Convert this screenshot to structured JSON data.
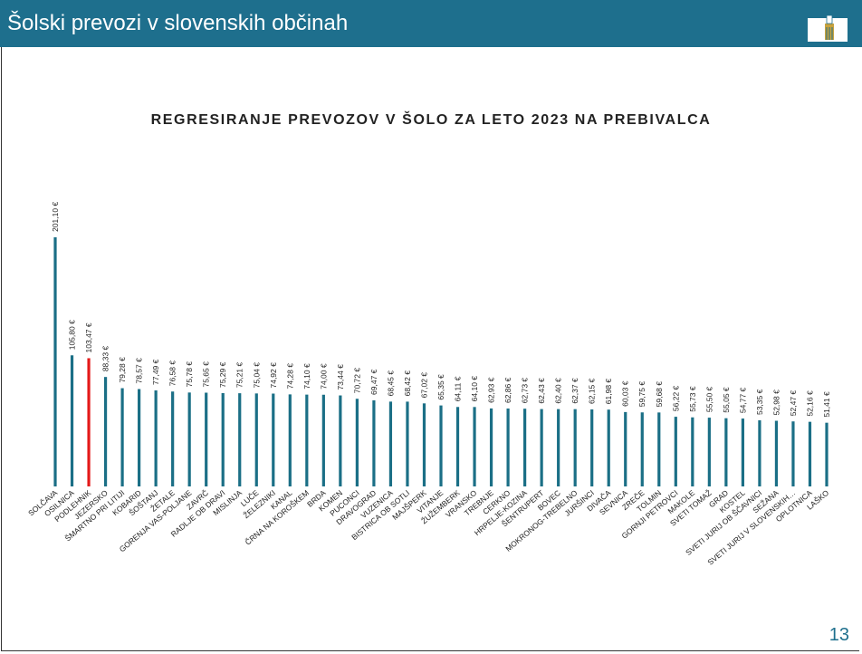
{
  "slide_title": "Šolski prevozi v slovenskih občinah",
  "page_number": "13",
  "chart_data": {
    "type": "bar",
    "title": "REGRESIRANJE PREVOZOV V ŠOLO ZA LETO 2023 NA PREBIVALCA",
    "categories": [
      "SOLČAVA",
      "OSILNICA",
      "PODLEHNIK",
      "JEZERSKO",
      "ŠMARTNO PRI LITIJI",
      "KOBARID",
      "ŠOŠTANJ",
      "ŽETALE",
      "GORENJA VAS-POLJANE",
      "ZAVRČ",
      "RADLJE OB DRAVI",
      "MISLINJA",
      "LUČE",
      "ŽELEZNIKI",
      "KANAL",
      "ČRNA NA KOROŠKEM",
      "BRDA",
      "KOMEN",
      "PUCONCI",
      "DRAVOGRAD",
      "VUZENICA",
      "BISTRICA OB SOTLI",
      "MAJŠPERK",
      "VITANJE",
      "ŽUŽEMBERK",
      "VRANSKO",
      "TREBNJE",
      "CERKNO",
      "HRPELJE-KOZINA",
      "ŠENTRUPERT",
      "BOVEC",
      "MOKRONOG-TREBELNO",
      "JURŠINCI",
      "DIVAČA",
      "SEVNICA",
      "ZREČE",
      "TOLMIN",
      "GORNJI PETROVCI",
      "MAKOLE",
      "SVETI TOMAŽ",
      "GRAD",
      "KOSTEL",
      "SVETI JURIJ OB ŠČAVNICI",
      "SEŽANA",
      "SVETI JURIJ V SLOVENSKIH…",
      "OPLOTNICA",
      "LAŠKO"
    ],
    "values": [
      201.1,
      105.8,
      103.47,
      88.33,
      79.28,
      78.57,
      77.49,
      76.58,
      75.78,
      75.65,
      75.29,
      75.21,
      75.04,
      74.92,
      74.28,
      74.1,
      74.0,
      73.44,
      70.72,
      69.47,
      68.45,
      68.42,
      67.02,
      65.35,
      64.11,
      64.1,
      62.93,
      62.86,
      62.73,
      62.43,
      62.4,
      62.37,
      62.15,
      61.98,
      60.03,
      59.75,
      59.68,
      56.22,
      55.73,
      55.5,
      55.05,
      54.77,
      53.35,
      52.98,
      52.47,
      52.16,
      51.41
    ],
    "value_labels": [
      "201,10 €",
      "105,80 €",
      "103,47 €",
      "88,33 €",
      "79,28 €",
      "78,57 €",
      "77,49 €",
      "76,58 €",
      "75,78 €",
      "75,65 €",
      "75,29 €",
      "75,21 €",
      "75,04 €",
      "74,92 €",
      "74,28 €",
      "74,10 €",
      "74,00 €",
      "73,44 €",
      "70,72 €",
      "69,47 €",
      "68,45 €",
      "68,42 €",
      "67,02 €",
      "65,35 €",
      "64,11 €",
      "64,10 €",
      "62,93 €",
      "62,86 €",
      "62,73 €",
      "62,43 €",
      "62,40 €",
      "62,37 €",
      "62,15 €",
      "61,98 €",
      "60,03 €",
      "59,75 €",
      "59,68 €",
      "56,22 €",
      "55,73 €",
      "55,50 €",
      "55,05 €",
      "54,77 €",
      "53,35 €",
      "52,98 €",
      "52,47 €",
      "52,16 €",
      "51,41 €"
    ],
    "colors": [
      "#1b6f86",
      "#1b6f86",
      "#e41a1a",
      "#1b6f86",
      "#1b6f86",
      "#1b6f86",
      "#1b6f86",
      "#1b6f86",
      "#1b6f86",
      "#1b6f86",
      "#1b6f86",
      "#1b6f86",
      "#1b6f86",
      "#1b6f86",
      "#1b6f86",
      "#1b6f86",
      "#1b6f86",
      "#1b6f86",
      "#1b6f86",
      "#1b6f86",
      "#1b6f86",
      "#1b6f86",
      "#1b6f86",
      "#1b6f86",
      "#1b6f86",
      "#1b6f86",
      "#1b6f86",
      "#1b6f86",
      "#1b6f86",
      "#1b6f86",
      "#1b6f86",
      "#1b6f86",
      "#1b6f86",
      "#1b6f86",
      "#1b6f86",
      "#1b6f86",
      "#1b6f86",
      "#1b6f86",
      "#1b6f86",
      "#1b6f86",
      "#1b6f86",
      "#1b6f86",
      "#1b6f86",
      "#1b6f86",
      "#1b6f86",
      "#1b6f86",
      "#1b6f86"
    ],
    "ylim": [
      0,
      250
    ]
  }
}
